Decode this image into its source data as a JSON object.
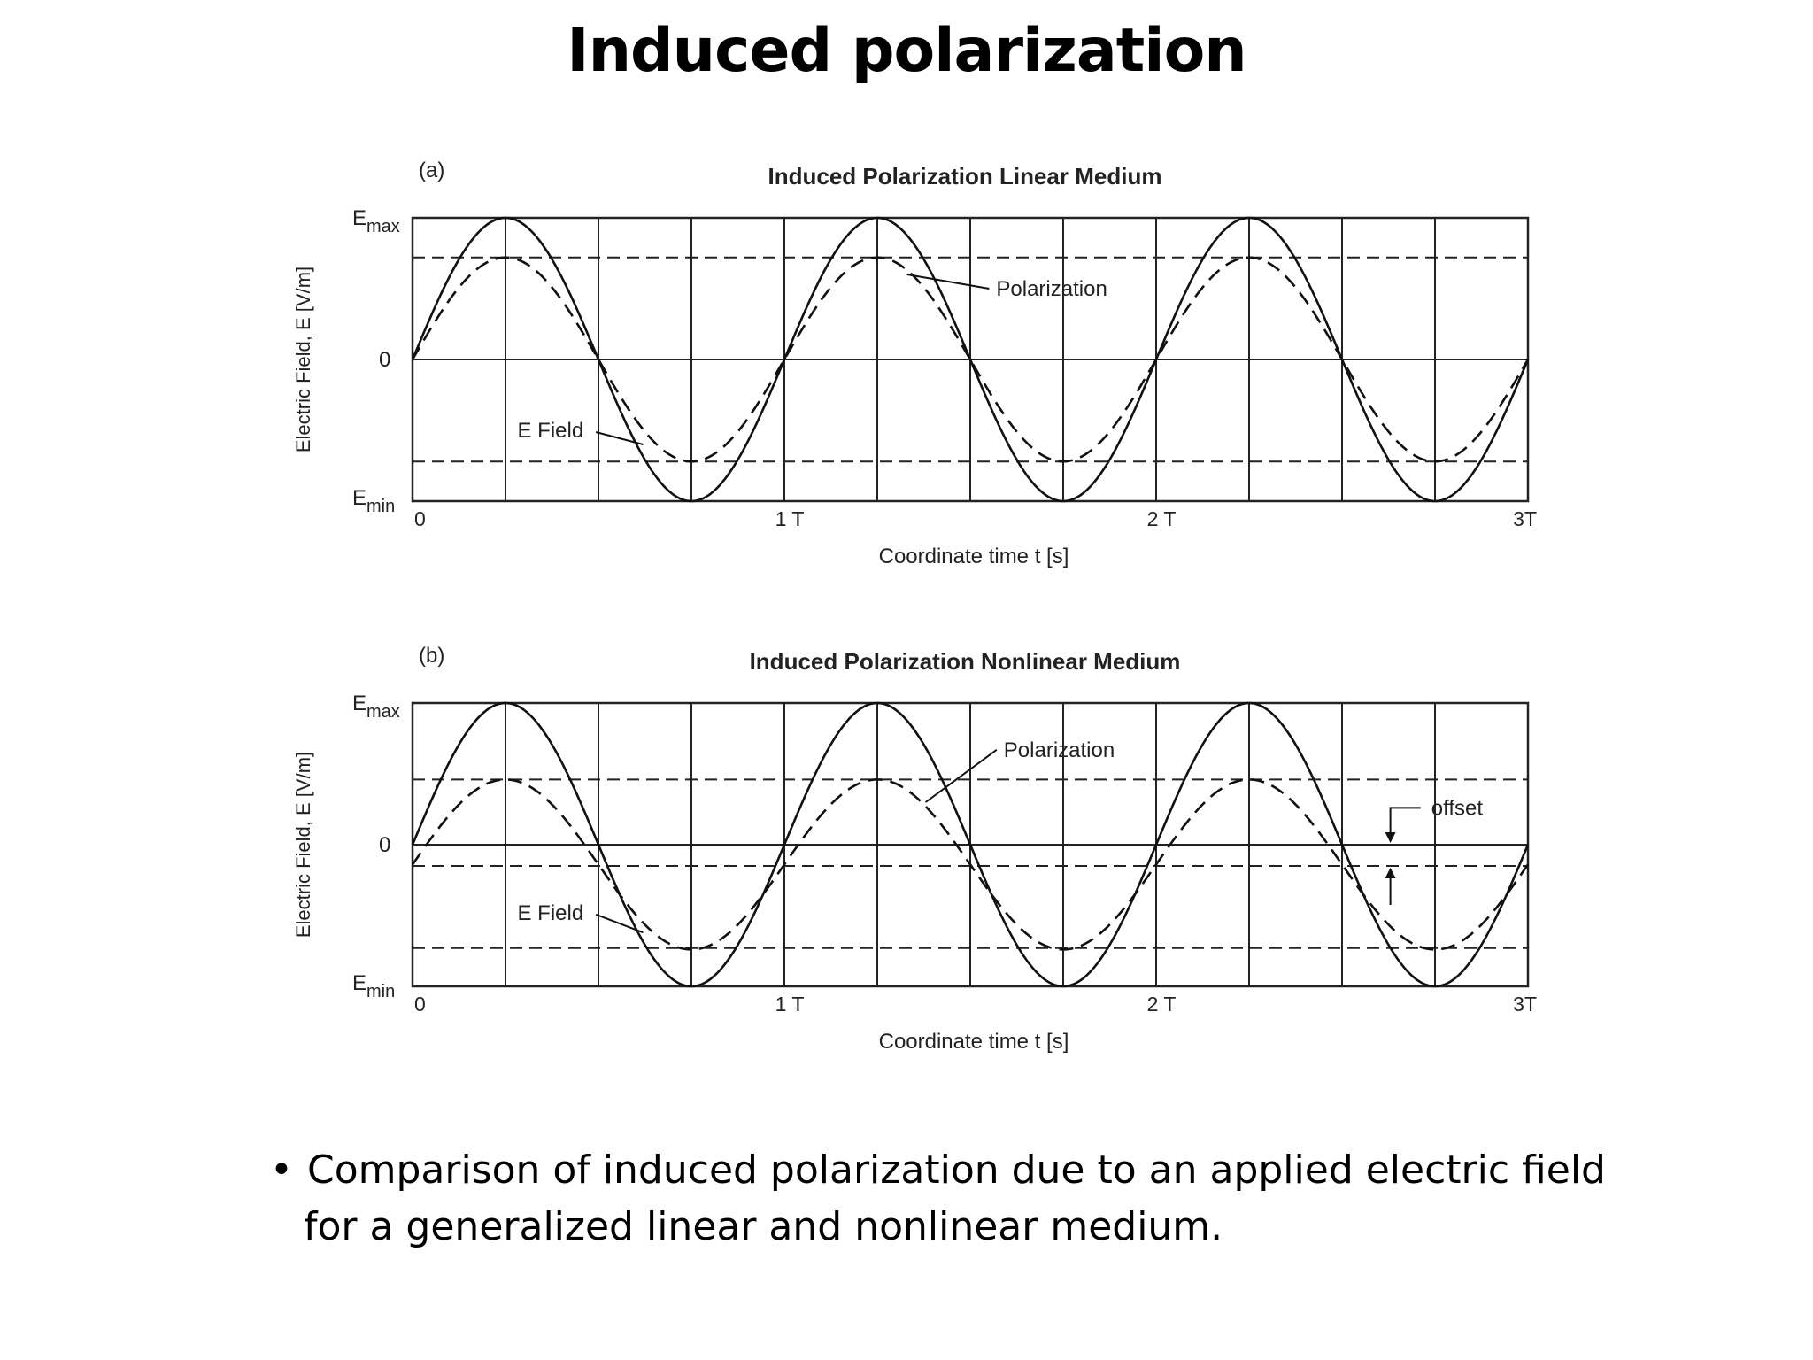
{
  "slide": {
    "title": "Induced polarization",
    "caption_bullet": "•",
    "caption_line1": "Comparison of induced polarization due to an applied electric field",
    "caption_line2": "for a generalized linear and nonlinear medium."
  },
  "colors": {
    "curve": "#111111",
    "grid": "#222222",
    "text": "#222222"
  },
  "chart_data": [
    {
      "type": "line",
      "panel_label": "(a)",
      "title": "Induced Polarization Linear Medium",
      "xlabel": "Coordinate time t  [s]",
      "ylabel": "Electric Field, E  [V/m]",
      "xlim": [
        0,
        3
      ],
      "ylim": [
        -1,
        1
      ],
      "x_ticks": [
        {
          "value": 0,
          "label": "0"
        },
        {
          "value": 1,
          "label": "1 T"
        },
        {
          "value": 2,
          "label": "2 T"
        },
        {
          "value": 3,
          "label": "3T"
        }
      ],
      "y_ticks": [
        {
          "value": 1,
          "label": "E",
          "sub": "max"
        },
        {
          "value": 0,
          "label": "0",
          "sub": ""
        },
        {
          "value": -1,
          "label": "E",
          "sub": "min"
        }
      ],
      "x_grid": [
        0.25,
        0.5,
        0.75,
        1,
        1.25,
        1.5,
        1.75,
        2,
        2.25,
        2.5,
        2.75
      ],
      "y_grid_solid": [
        0
      ],
      "y_grid_dashed": [
        0.72,
        -0.72
      ],
      "series": [
        {
          "name": "E Field",
          "style": "solid",
          "amplitude": 1.0,
          "offset": 0,
          "periods": 3
        },
        {
          "name": "Polarization",
          "style": "dashed",
          "amplitude": 0.72,
          "offset": 0,
          "periods": 3
        }
      ],
      "annotations": [
        {
          "text": "Polarization",
          "label_x": 1.57,
          "label_y": 0.5,
          "target_x": 1.33,
          "target_y": 0.6
        },
        {
          "text": "E Field",
          "label_x": 0.46,
          "label_y": -0.5,
          "target_x": 0.62,
          "target_y": -0.6
        }
      ]
    },
    {
      "type": "line",
      "panel_label": "(b)",
      "title": "Induced Polarization Nonlinear Medium",
      "xlabel": "Coordinate time t  [s]",
      "ylabel": "Electric Field, E  [V/m]",
      "xlim": [
        0,
        3
      ],
      "ylim": [
        -1,
        1
      ],
      "x_ticks": [
        {
          "value": 0,
          "label": "0"
        },
        {
          "value": 1,
          "label": "1 T"
        },
        {
          "value": 2,
          "label": "2 T"
        },
        {
          "value": 3,
          "label": "3T"
        }
      ],
      "y_ticks": [
        {
          "value": 1,
          "label": "E",
          "sub": "max"
        },
        {
          "value": 0,
          "label": "0",
          "sub": ""
        },
        {
          "value": -1,
          "label": "E",
          "sub": "min"
        }
      ],
      "x_grid": [
        0.25,
        0.5,
        0.75,
        1,
        1.25,
        1.5,
        1.75,
        2,
        2.25,
        2.5,
        2.75
      ],
      "y_grid_solid": [
        0
      ],
      "y_grid_dashed": [
        0.46,
        -0.15,
        -0.73
      ],
      "series": [
        {
          "name": "E Field",
          "style": "solid",
          "amplitude": 1.0,
          "offset": 0,
          "periods": 3
        },
        {
          "name": "Polarization",
          "style": "dashed",
          "amplitude": 0.6,
          "offset": -0.14,
          "periods": 3
        }
      ],
      "annotations": [
        {
          "text": "Polarization",
          "label_x": 1.59,
          "label_y": 0.67,
          "target_x": 1.38,
          "target_y": 0.3
        },
        {
          "text": "E Field",
          "label_x": 0.46,
          "label_y": -0.48,
          "target_x": 0.62,
          "target_y": -0.62
        },
        {
          "text": "offset",
          "label_x": 2.74,
          "label_y": 0.26,
          "target_x": 2.63,
          "target_y": 0.0
        }
      ]
    }
  ]
}
